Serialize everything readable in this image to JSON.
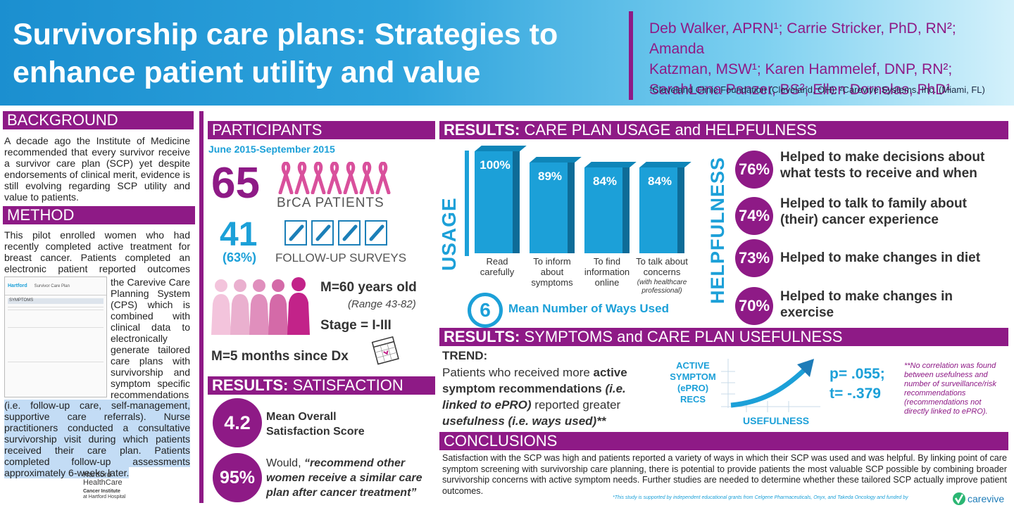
{
  "header": {
    "title_line1": "Survivorship care plans: Strategies to",
    "title_line2": "enhance patient utility and value",
    "authors_line1": "Deb Walker, APRN¹; Carrie Stricker, PhD, RN²; Amanda",
    "authors_line2": "Katzman, MSW¹; Karen Hammelef, DNP, RN²;",
    "authors_line3": "SarahLena Panzer, BS²; Ellen Dornelas, PhD¹",
    "affiliations": "¹Cleveland Clinic Foundation (Cleveland, OH); ²Carevive Systems, Inc. (Miami, FL)"
  },
  "background": {
    "heading": "BACKGROUND",
    "text": "A decade ago the Institute of Medicine recommended that every survivor receive a survivor care plan (SCP) yet despite endorsements of clinical merit, evidence is still evolving regarding SCP utility and value to patients."
  },
  "method": {
    "heading": "METHOD",
    "text_top": "This pilot enrolled women who had recently completed active treatment for breast cancer. Patients completed an electronic patient reported outcomes (ePRO) survey via",
    "text_side": "the Carevive Care Planning System (CPS) which is combined with clinical data to electronically generate tailored care plans with survivorship and symptom specific recommendations",
    "text_highlight": "(i.e. follow-up care, self-management, supportive care referrals). Nurse practitioners conducted a consultative survivorship visit during which patients received their care plan. Patients completed follow-up assessments approximately 6-weeks later.",
    "logo_line1": "Hartford",
    "logo_line2": "HealthCare",
    "logo_line3": "Cancer Institute",
    "logo_line4": "at Hartford Hospital",
    "screenshot_header": "Survivor Care Plan",
    "screenshot_tab": "SYMPTOMS"
  },
  "participants": {
    "heading": "PARTICIPANTS",
    "dates": "June 2015-September 2015",
    "patients_count": "65",
    "patients_label": "BrCA PATIENTS",
    "surveys_count": "41",
    "surveys_pct": "(63%)",
    "surveys_label": "FOLLOW-UP SURVEYS",
    "age": "M=60 years old",
    "age_range": "(Range 43-82)",
    "stage": "Stage = I-III",
    "since_dx": "M=5 months since Dx"
  },
  "satisfaction": {
    "heading_bold": "RESULTS:",
    "heading_rest": " SATISFACTION",
    "score": "4.2",
    "score_label_1": "Mean Overall",
    "score_label_2": "Satisfaction Score",
    "recommend_pct": "95%",
    "recommend_prefix": "Would, ",
    "recommend_quote": "“recommend other women receive a similar care plan after cancer treatment”"
  },
  "usage": {
    "heading_bold": "RESULTS:",
    "heading_rest": " CARE PLAN USAGE and HELPFULNESS",
    "usage_label": "USAGE",
    "helpfulness_label": "HELPFULNESS",
    "mean_ways": "6",
    "mean_ways_label": "Mean Number of Ways Used",
    "bar_notes": "(with healthcare professional)"
  },
  "chart_data": {
    "type": "bar",
    "categories": [
      "Read carefully",
      "To inform about symptoms",
      "To find information online",
      "To talk about concerns"
    ],
    "values": [
      100,
      89,
      84,
      84
    ],
    "value_labels": [
      "100%",
      "89%",
      "84%",
      "84%"
    ],
    "ylabel": "USAGE",
    "ylim": [
      0,
      100
    ]
  },
  "helpfulness": [
    {
      "pct": "76%",
      "text": "Helped to make decisions about what tests to receive and when"
    },
    {
      "pct": "74%",
      "text": "Helped to talk to family about (their) cancer experience"
    },
    {
      "pct": "73%",
      "text": "Helped to make changes in diet"
    },
    {
      "pct": "70%",
      "text": "Helped to make changes in exercise"
    }
  ],
  "symptoms": {
    "heading_bold": "RESULTS:",
    "heading_rest": " SYMPTOMS and CARE PLAN USEFULNESS",
    "trend_label": "TREND:",
    "trend_a": "Patients who received more ",
    "trend_b": "active symptom recommendations",
    "trend_c": " (i.e. linked to ePRO)",
    "trend_d": " reported greater ",
    "trend_e": "usefulness (i.e. ways used)**",
    "y_axis": "ACTIVE SYMPTOM (ePRO) RECS",
    "x_axis": "USEFULNESS",
    "p_value": "p= .055;",
    "t_value": "t= -.379",
    "note": "**No correlation was found between usefulness and number of surveillance/risk recommendations (recommendations not directly linked to ePRO)."
  },
  "conclusions": {
    "heading": "CONCLUSIONS",
    "text": "Satisfaction with the SCP was high and patients reported a variety of ways in which their SCP was used and was helpful. By linking point of care symptom screening with survivorship care planning, there is potential to provide patients the most valuable SCP possible by combining broader survivorship concerns with active symptom needs. Further studies are needed to determine whether these tailored SCP actually improve patient outcomes.",
    "funding": "*This study is supported by independent educational grants from Celgene Pharmaceuticals, Onyx, and Takeda Oncology and funded by",
    "funder_logo": "carevive"
  },
  "colors": {
    "purple": "#8e1a86",
    "blue": "#1ca0d8",
    "dark_blue": "#0e6c98"
  }
}
